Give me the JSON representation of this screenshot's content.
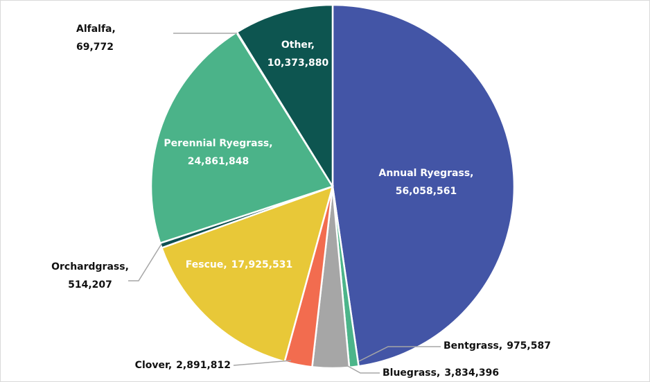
{
  "chart_data": {
    "type": "pie",
    "categories": [
      "Annual Ryegrass",
      "Bentgrass",
      "Bluegrass",
      "Clover",
      "Fescue",
      "Orchardgrass",
      "Perennial Ryegrass",
      "Alfalfa",
      "Other"
    ],
    "values": [
      56058561,
      975587,
      3834396,
      2891812,
      17925531,
      514207,
      24861848,
      69772,
      10373880
    ],
    "value_labels": [
      "56,058,561",
      "975,587",
      "3,834,396",
      "2,891,812",
      "17,925,531",
      "514,207",
      "24,861,848",
      "69,772",
      "10,373,880"
    ],
    "colors": [
      "#4355a6",
      "#4cb58a",
      "#a6a6a6",
      "#f26c4f",
      "#e8c838",
      "#0e5050",
      "#4bb389",
      "#9fd4be",
      "#0d5550"
    ]
  }
}
